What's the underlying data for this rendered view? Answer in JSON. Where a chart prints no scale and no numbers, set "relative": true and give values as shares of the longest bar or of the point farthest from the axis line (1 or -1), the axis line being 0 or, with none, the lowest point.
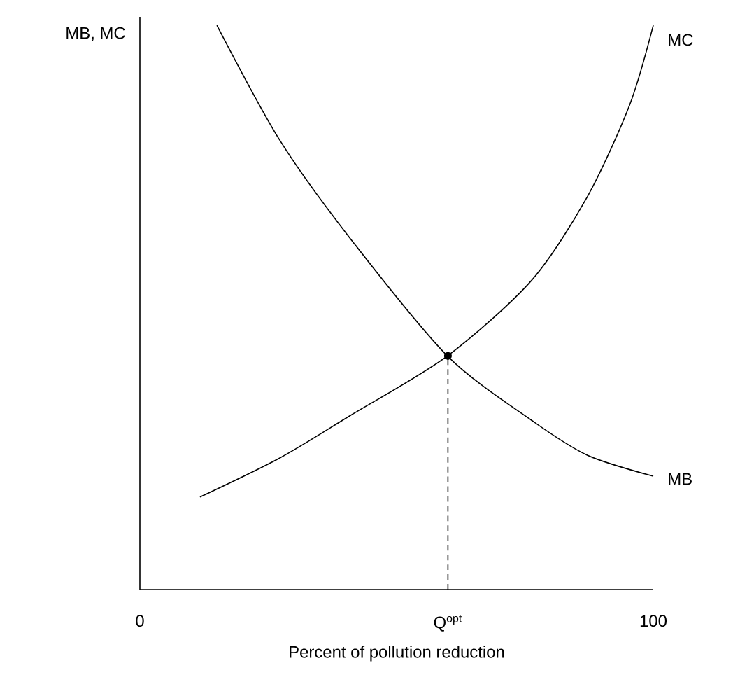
{
  "chart_data": {
    "type": "line",
    "relative": true,
    "xlabel": "Percent of pollution reduction",
    "ylabel": "MB, MC",
    "xlim": [
      0,
      100
    ],
    "xticks": [
      0,
      {
        "value": 60,
        "label": "Q$^{opt}$"
      },
      100
    ],
    "marker": "none",
    "series": [
      {
        "name": "MB",
        "color": "#000000",
        "x": [
          15.0,
          27.2,
          40.9,
          59.9,
          76.3,
          87.2,
          100
        ],
        "values": [
          1.0,
          0.797,
          0.623,
          0.414,
          0.3,
          0.238,
          0.201
        ]
      },
      {
        "name": "MC",
        "color": "#000000",
        "x": [
          11.7,
          27.2,
          40.9,
          59.9,
          76.3,
          87.2,
          95.4,
          100
        ],
        "values": [
          0.164,
          0.233,
          0.308,
          0.414,
          0.548,
          0.697,
          0.859,
          1.0
        ]
      },
      {
        "type": "line",
        "color": "#000000",
        "line_style": "dashed",
        "x": [
          60,
          60
        ],
        "values": [
          0,
          0.414
        ]
      },
      {
        "type": "scatter",
        "color": "#000000",
        "marker": "circle",
        "x": [
          60
        ],
        "values": [
          0.414
        ]
      }
    ]
  }
}
